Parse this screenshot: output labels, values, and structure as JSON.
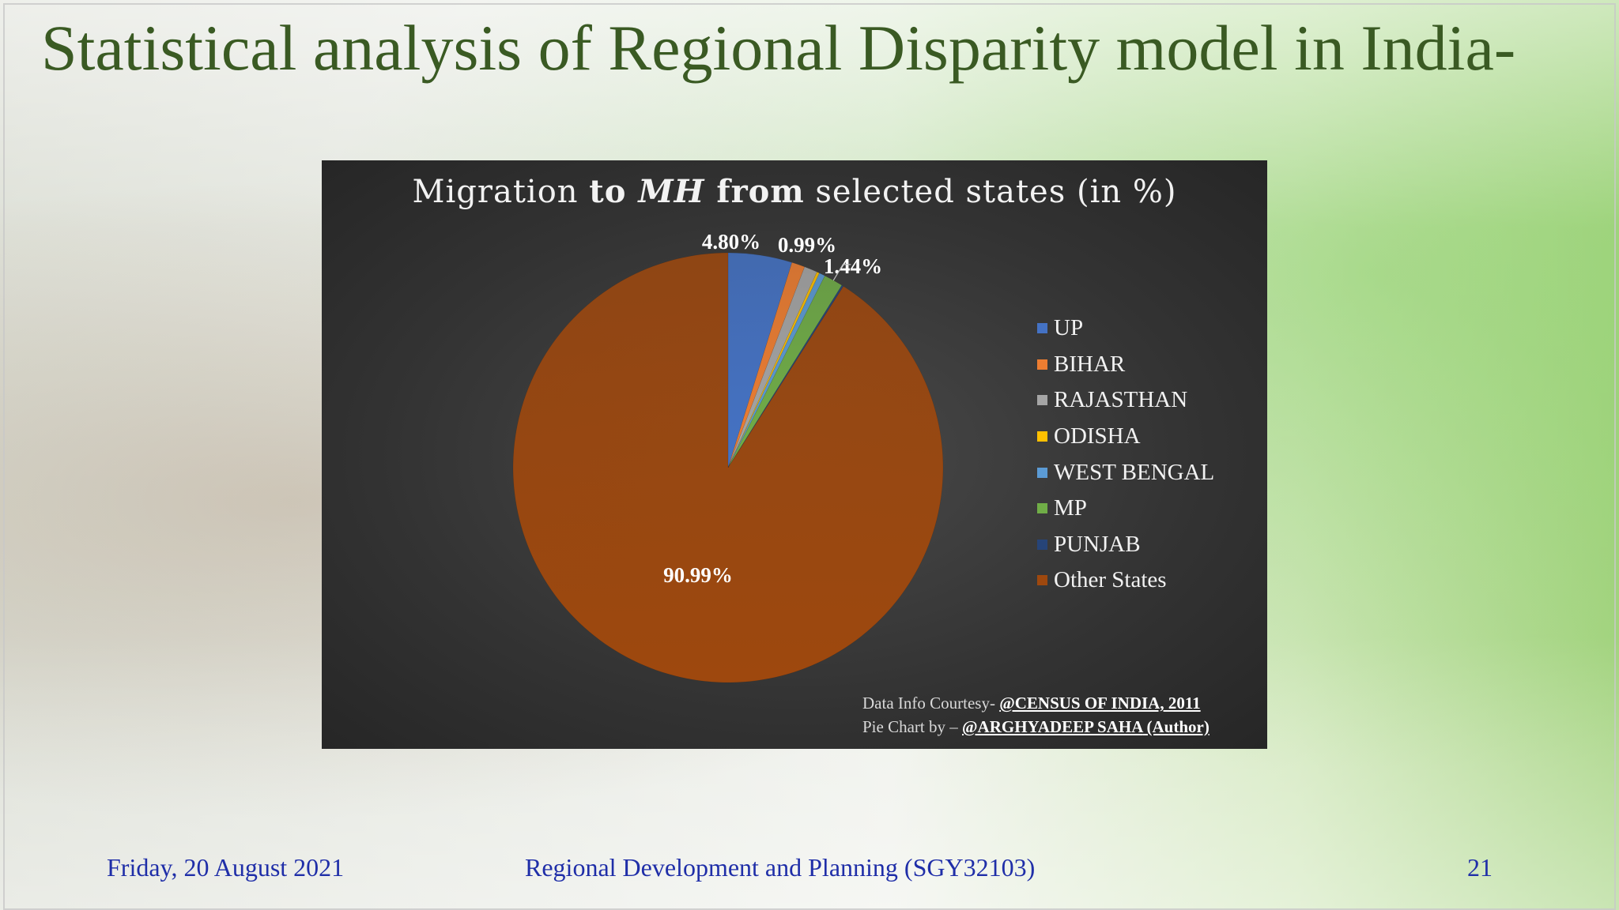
{
  "slide": {
    "title": "Statistical analysis of Regional Disparity model in India-",
    "footer_date": "Friday, 20 August 2021",
    "footer_course": "Regional Development and Planning (SGY32103)",
    "page_number": "21"
  },
  "chart_data": {
    "type": "pie",
    "title_parts": [
      "Migration ",
      "to ",
      "MH",
      " from",
      " selected states (in %)"
    ],
    "categories": [
      "UP",
      "BIHAR",
      "RAJASTHAN",
      "ODISHA",
      "WEST BENGAL",
      "MP",
      "PUNJAB",
      "Other States"
    ],
    "values": [
      4.8,
      0.99,
      0.99,
      0.2,
      0.45,
      1.44,
      0.14,
      90.99
    ],
    "colors": [
      "#4472c4",
      "#ed7d31",
      "#a5a5a5",
      "#ffc000",
      "#5b9bd5",
      "#70ad47",
      "#264478",
      "#9e480e"
    ],
    "data_labels": {
      "UP": "4.80%",
      "BIHAR": "0.99%",
      "MP": "1.44%",
      "Other States": "90.99%"
    },
    "legend_position": "right"
  },
  "credits": {
    "line1_prefix": "Data Info Courtesy- ",
    "line1_source": "@CENSUS OF INDIA, 2011",
    "line2_prefix": "Pie Chart by – ",
    "line2_author": "@ARGHYADEEP SAHA",
    "line2_suffix": " (Author)"
  }
}
